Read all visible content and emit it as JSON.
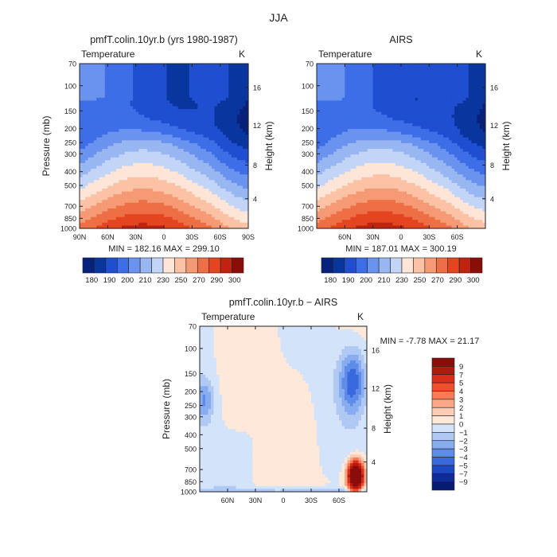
{
  "figure_title": "JJA",
  "chart_data": [
    {
      "type": "heatmap",
      "plot_type": "latitude-pressure contour",
      "title": "pmfT.colin.10yr.b (yrs 1980-1987)",
      "subtitle": "Temperature",
      "units": "K",
      "ylabel": "Pressure (mb)",
      "ylabel_right": "Height (km)",
      "y_scale": "log",
      "ylim": [
        1000,
        70
      ],
      "xlim": [
        90,
        -90
      ],
      "x_ticks": [
        "90N",
        "60N",
        "30N",
        "0",
        "30S",
        "60S",
        "90S"
      ],
      "y_ticks": [
        "70",
        "100",
        "150",
        "200",
        "250",
        "300",
        "400",
        "500",
        "700",
        "850",
        "1000"
      ],
      "height_ticks": [
        "4",
        "8",
        "12",
        "16"
      ],
      "min_max_text": "MIN = 182.16   MAX = 299.10",
      "colorbar_labels": [
        "180",
        "190",
        "200",
        "210",
        "230",
        "250",
        "270",
        "290",
        "300"
      ]
    },
    {
      "type": "heatmap",
      "plot_type": "latitude-pressure contour",
      "title": "AIRS",
      "subtitle": "Temperature",
      "units": "K",
      "ylabel": "Height (km)",
      "y_scale": "log",
      "ylim": [
        1000,
        70
      ],
      "xlim": [
        90,
        -90
      ],
      "x_ticks": [
        "60N",
        "30N",
        "0",
        "30S",
        "60S"
      ],
      "y_ticks": [
        "70",
        "100",
        "150",
        "200",
        "250",
        "300",
        "400",
        "500",
        "700",
        "850",
        "1000"
      ],
      "height_ticks": [
        "4",
        "8",
        "12",
        "16"
      ],
      "min_max_text": "MIN = 187.01   MAX = 300.19",
      "colorbar_labels": [
        "180",
        "190",
        "200",
        "210",
        "230",
        "250",
        "270",
        "290",
        "300"
      ]
    },
    {
      "type": "heatmap",
      "plot_type": "latitude-pressure difference contour",
      "title": "pmfT.colin.10yr.b − AIRS",
      "subtitle": "Temperature",
      "units": "K",
      "ylabel": "Pressure (mb)",
      "ylabel_right": "Height (km)",
      "y_scale": "log",
      "ylim": [
        1000,
        70
      ],
      "xlim": [
        90,
        -90
      ],
      "x_ticks": [
        "60N",
        "30N",
        "0",
        "30S",
        "60S"
      ],
      "y_ticks": [
        "70",
        "100",
        "150",
        "200",
        "250",
        "300",
        "400",
        "500",
        "700",
        "850",
        "1000"
      ],
      "height_ticks": [
        "4",
        "8",
        "12",
        "16"
      ],
      "min_max_text": "MIN =   -7.78   MAX =   21.17",
      "colorbar_labels": [
        "9",
        "7",
        "5",
        "4",
        "3",
        "2",
        "1",
        "0",
        "−1",
        "−2",
        "−3",
        "−4",
        "−5",
        "−7",
        "−9"
      ]
    }
  ],
  "palettes": {
    "temperature": [
      "#08217a",
      "#08369e",
      "#1f4fd0",
      "#3d6ee8",
      "#6a92ef",
      "#98b6f2",
      "#c2d5f7",
      "#fde5d8",
      "#fbc2a5",
      "#f59a75",
      "#ee6f45",
      "#e54420",
      "#c02410",
      "#8a0d0a"
    ],
    "difference": [
      "#8a0d0a",
      "#b11a10",
      "#d92e1a",
      "#f04e2c",
      "#f87b55",
      "#fba684",
      "#fdcdb6",
      "#fde8da",
      "#d3e3f9",
      "#b0c9f4",
      "#87acef",
      "#5f8ce9",
      "#3a69dd",
      "#1c48c2",
      "#0d2c94",
      "#071c70"
    ]
  }
}
